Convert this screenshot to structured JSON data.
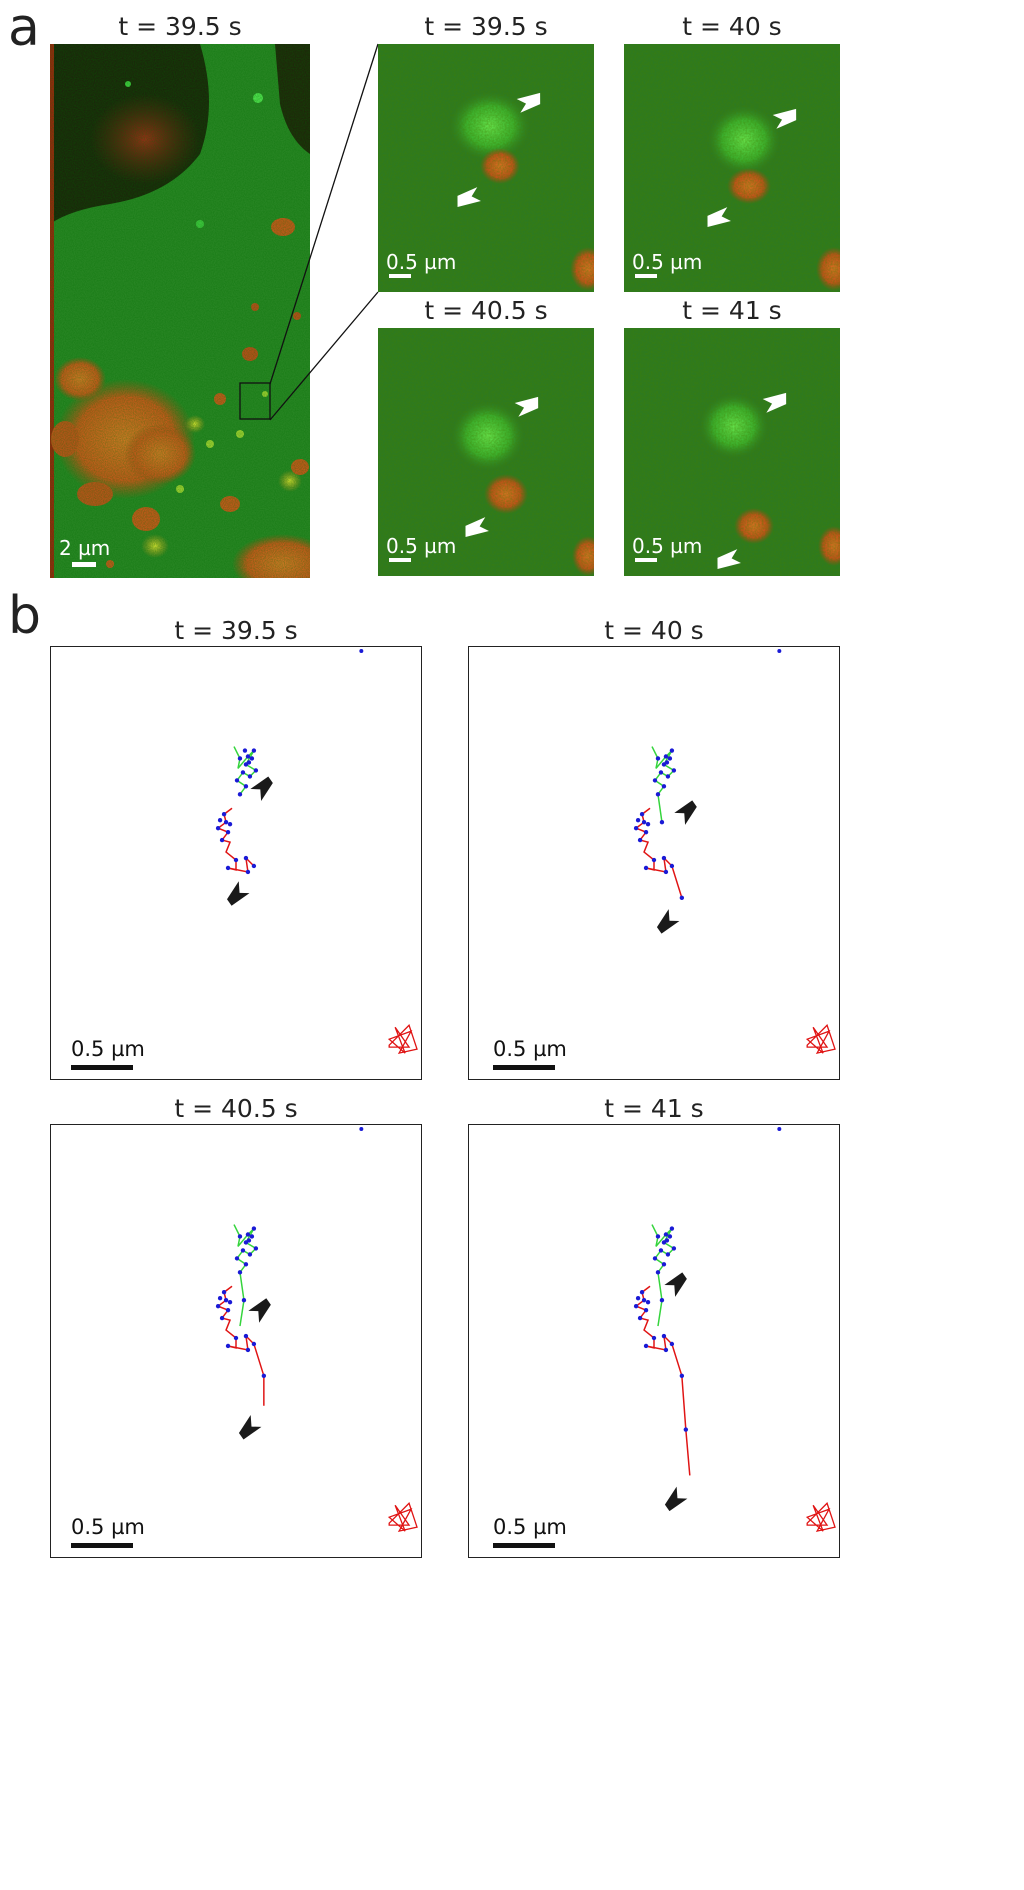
{
  "panel_a": {
    "letter": "a",
    "overview": {
      "time_label": "t = 39.5 s",
      "scale_label": "2 µm"
    },
    "zooms": [
      {
        "time_label": "t = 39.5 s",
        "scale_label": "0.5 µm"
      },
      {
        "time_label": "t = 40 s",
        "scale_label": "0.5 µm"
      },
      {
        "time_label": "t = 40.5 s",
        "scale_label": "0.5 µm"
      },
      {
        "time_label": "t = 41 s",
        "scale_label": "0.5 µm"
      }
    ]
  },
  "panel_b": {
    "letter": "b",
    "plots": [
      {
        "time_label": "t = 39.5 s",
        "scale_label": "0.5 µm"
      },
      {
        "time_label": "t = 40 s",
        "scale_label": "0.5 µm"
      },
      {
        "time_label": "t = 40.5 s",
        "scale_label": "0.5 µm"
      },
      {
        "time_label": "t = 41 s",
        "scale_label": "0.5 µm"
      }
    ]
  },
  "colors": {
    "background": "#ffffff",
    "cell_green": "#2f8a2a",
    "vesicle_red": "#d9541e",
    "green_track": "#34d43c",
    "red_track": "#e01414",
    "points": "#1a1ad6",
    "arrow_white": "#ffffff",
    "arrow_black": "#1a1a1a"
  }
}
